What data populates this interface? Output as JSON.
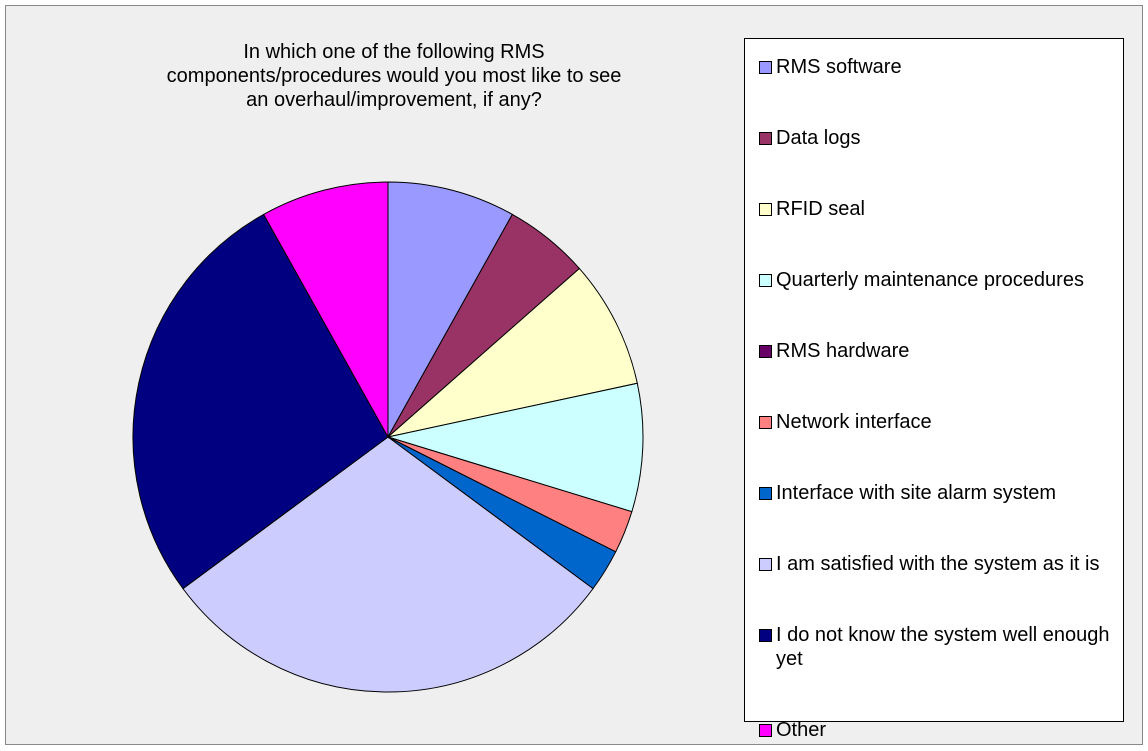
{
  "chart_data": {
    "type": "pie",
    "title": "In which one of the following RMS components/procedures would you most like to see an overhaul/improvement, if any?",
    "categories": [
      "RMS software",
      "Data logs",
      "RFID seal",
      "Quarterly maintenance procedures",
      "RMS hardware",
      "Network interface",
      "Interface with site alarm system",
      "I am satisfied with the system as it is",
      "I do not know the system well enough yet",
      "Other"
    ],
    "values": [
      3,
      2,
      3,
      3,
      0,
      1,
      1,
      11,
      10,
      3
    ],
    "colors": [
      "#9999ff",
      "#993366",
      "#ffffcc",
      "#ccffff",
      "#660066",
      "#ff8080",
      "#0066cc",
      "#ccccff",
      "#000080",
      "#ff00ff"
    ],
    "legend": "right"
  }
}
